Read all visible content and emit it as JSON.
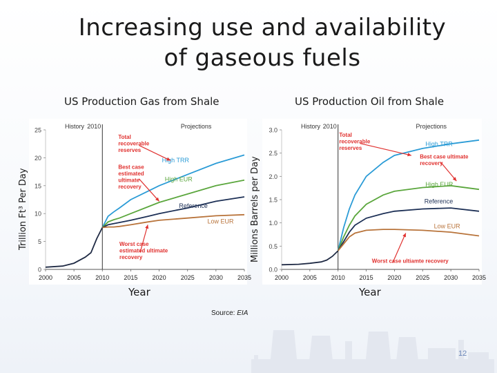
{
  "slide": {
    "title_line1": "Increasing use and availability",
    "title_line2": "of gaseous fuels",
    "source_label": "Source: ",
    "source_name": "EIA",
    "page_number": "12"
  },
  "chart_data": [
    {
      "type": "line",
      "title": "US Production Gas  from Shale",
      "ylabel": "Trillion Ft³  Per Day",
      "xlabel": "Year",
      "xlim": [
        2000,
        2035
      ],
      "ylim": [
        0,
        25
      ],
      "x_ticks": [
        2000,
        2005,
        2010,
        2015,
        2020,
        2025,
        2030,
        2035
      ],
      "y_ticks": [
        0,
        5,
        10,
        15,
        20,
        25
      ],
      "divider_x": 2010,
      "period_labels": {
        "left": "History",
        "mid": "2010",
        "right": "Projections"
      },
      "colors": {
        "history": "#1f2a44",
        "High TRR": "#2a9bd6",
        "High EUR": "#5aa63c",
        "Reference": "#1c2f55",
        "Low EUR": "#b8733a",
        "annotation": "#e0312f"
      },
      "history": {
        "x": [
          2000,
          2003,
          2005,
          2007,
          2008,
          2009,
          2010
        ],
        "y": [
          0.4,
          0.6,
          1.1,
          2.2,
          3.0,
          5.5,
          7.5
        ]
      },
      "series": [
        {
          "name": "High TRR",
          "label_pos": [
            2020.5,
            19.2
          ],
          "x": [
            2010,
            2011,
            2012,
            2013,
            2015,
            2018,
            2020,
            2025,
            2030,
            2035
          ],
          "y": [
            7.5,
            9.5,
            10.3,
            11.0,
            12.5,
            14.0,
            15.0,
            17.0,
            19.0,
            20.5
          ]
        },
        {
          "name": "High EUR",
          "label_pos": [
            2021,
            15.8
          ],
          "x": [
            2010,
            2011,
            2012,
            2013,
            2015,
            2018,
            2020,
            2025,
            2030,
            2035
          ],
          "y": [
            7.5,
            8.5,
            8.9,
            9.2,
            10.0,
            11.2,
            12.0,
            13.5,
            15.0,
            16.0
          ]
        },
        {
          "name": "Reference",
          "label_pos": [
            2023.5,
            11.0
          ],
          "x": [
            2010,
            2011,
            2012,
            2013,
            2015,
            2018,
            2020,
            2025,
            2030,
            2035
          ],
          "y": [
            7.5,
            8.0,
            8.2,
            8.4,
            8.8,
            9.5,
            10.0,
            11.0,
            12.2,
            13.0
          ]
        },
        {
          "name": "Low EUR",
          "label_pos": [
            2028.5,
            8.2
          ],
          "x": [
            2010,
            2011,
            2012,
            2013,
            2015,
            2018,
            2020,
            2025,
            2030,
            2035
          ],
          "y": [
            7.5,
            7.6,
            7.6,
            7.7,
            8.0,
            8.5,
            8.8,
            9.2,
            9.6,
            9.8
          ]
        }
      ],
      "annotations": [
        {
          "lines": [
            "Total",
            "recoverable",
            "reserves"
          ],
          "pos": [
            2012.8,
            23.4
          ],
          "arrow_to": [
            2022,
            19.5
          ]
        },
        {
          "lines": [
            "Best case",
            "estimated",
            "ultimate",
            "recovery"
          ],
          "pos": [
            2012.8,
            18.0
          ],
          "arrow_to": [
            2020,
            12.2
          ]
        },
        {
          "lines": [
            "Worst case",
            "estimated ultimate",
            "recovery"
          ],
          "pos": [
            2013,
            4.2
          ],
          "arrow_to": [
            2018,
            8.0
          ]
        }
      ]
    },
    {
      "type": "line",
      "title": "US Production Oil  from Shale",
      "ylabel": "Millions Barrels per Day",
      "xlabel": "Year",
      "xlim": [
        2000,
        2035
      ],
      "ylim": [
        0,
        3.0
      ],
      "x_ticks": [
        2000,
        2005,
        2010,
        2015,
        2020,
        2025,
        2030,
        2035
      ],
      "y_ticks": [
        0,
        0.5,
        1.0,
        1.5,
        2.0,
        2.5,
        3.0
      ],
      "divider_x": 2010,
      "period_labels": {
        "left": "History",
        "mid": "2010",
        "right": "Projections"
      },
      "colors": {
        "history": "#1f2a44",
        "High TRR": "#2a9bd6",
        "High EUR": "#5aa63c",
        "Reference": "#1c2f55",
        "Low EUR": "#b8733a",
        "annotation": "#e0312f"
      },
      "history": {
        "x": [
          2000,
          2003,
          2005,
          2007,
          2008,
          2009,
          2010
        ],
        "y": [
          0.1,
          0.11,
          0.13,
          0.16,
          0.2,
          0.28,
          0.4
        ]
      },
      "series": [
        {
          "name": "High TRR",
          "label_pos": [
            2025.5,
            2.65
          ],
          "x": [
            2010,
            2011,
            2012,
            2013,
            2015,
            2018,
            2020,
            2025,
            2030,
            2035
          ],
          "y": [
            0.4,
            0.9,
            1.3,
            1.6,
            2.0,
            2.3,
            2.45,
            2.6,
            2.7,
            2.78
          ]
        },
        {
          "name": "High EUR",
          "label_pos": [
            2025.5,
            1.78
          ],
          "x": [
            2010,
            2011,
            2012,
            2013,
            2015,
            2018,
            2020,
            2025,
            2030,
            2035
          ],
          "y": [
            0.4,
            0.7,
            0.95,
            1.15,
            1.4,
            1.6,
            1.68,
            1.76,
            1.8,
            1.72
          ]
        },
        {
          "name": "Reference",
          "label_pos": [
            2025.3,
            1.42
          ],
          "x": [
            2010,
            2011,
            2012,
            2013,
            2015,
            2018,
            2020,
            2025,
            2030,
            2035
          ],
          "y": [
            0.4,
            0.6,
            0.8,
            0.95,
            1.1,
            1.2,
            1.25,
            1.3,
            1.32,
            1.25
          ]
        },
        {
          "name": "Low EUR",
          "label_pos": [
            2027,
            0.88
          ],
          "x": [
            2010,
            2011,
            2012,
            2013,
            2015,
            2018,
            2020,
            2025,
            2030,
            2035
          ],
          "y": [
            0.4,
            0.55,
            0.7,
            0.78,
            0.84,
            0.86,
            0.86,
            0.84,
            0.8,
            0.72
          ]
        }
      ],
      "annotations": [
        {
          "lines": [
            "Total",
            "recoverable",
            "reserves"
          ],
          "pos": [
            2010.2,
            2.85
          ],
          "arrow_to": [
            2023,
            2.45
          ]
        },
        {
          "lines": [
            "Best case ultimate",
            "recovery"
          ],
          "pos": [
            2024.5,
            2.38
          ],
          "arrow_to": [
            2031,
            1.9
          ]
        },
        {
          "lines": [
            "Worst case ultiamte recovery"
          ],
          "pos": [
            2016,
            0.14
          ],
          "arrow_to": [
            2022,
            0.78
          ]
        }
      ]
    }
  ]
}
